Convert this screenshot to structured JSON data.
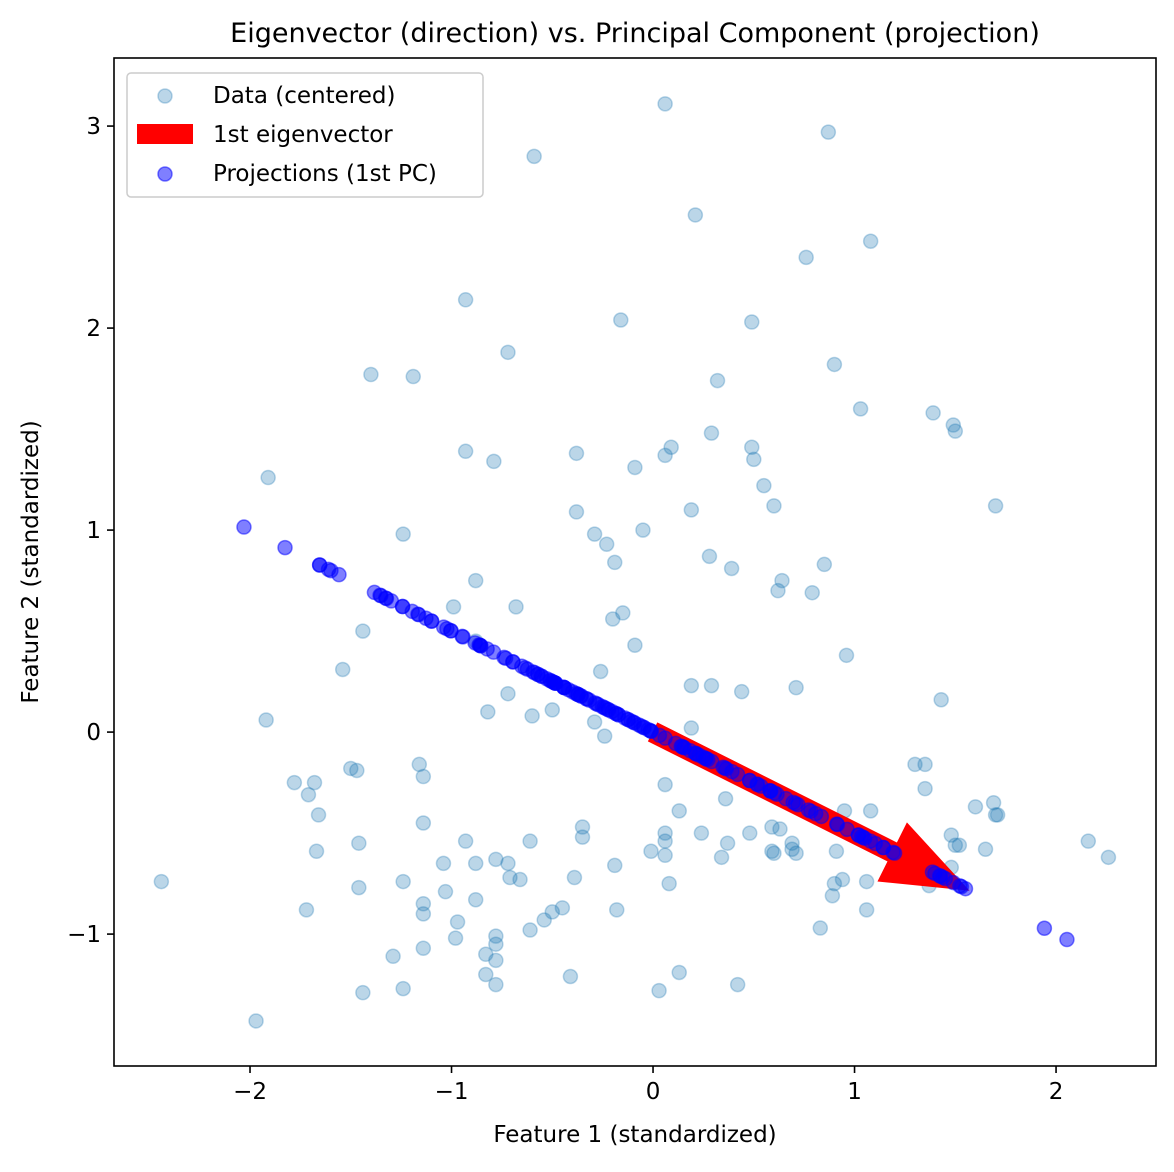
{
  "chart_data": {
    "type": "scatter",
    "title": "Eigenvector (direction) vs. Principal Component (projection)",
    "xlabel": "Feature 1 (standardized)",
    "ylabel": "Feature 2 (standardized)",
    "xlim": [
      -2.675,
      2.496
    ],
    "ylim": [
      -1.653,
      3.337
    ],
    "xticks": [
      -2,
      -1,
      0,
      1,
      2
    ],
    "xtick_labels": [
      "−2",
      "−1",
      "0",
      "1",
      "2"
    ],
    "yticks": [
      -1,
      0,
      1,
      2,
      3
    ],
    "ytick_labels": [
      "−1",
      "0",
      "1",
      "2",
      "3"
    ],
    "grid": false,
    "legend_position": "top-left",
    "legend": [
      "Data (centered)",
      "1st eigenvector",
      "Projections (1st PC)"
    ],
    "colors": {
      "data": "#1f77b4",
      "eigenvector": "#ff0000",
      "projection": "#0000ff"
    },
    "eigenvector": [
      0.894,
      -0.447
    ],
    "arrow_length": 1.75,
    "points": [
      [
        -2.44,
        -0.74
      ],
      [
        -1.97,
        -1.43
      ],
      [
        -1.91,
        1.26
      ],
      [
        -1.92,
        0.06
      ],
      [
        -1.78,
        -0.25
      ],
      [
        -1.71,
        -0.31
      ],
      [
        -1.68,
        -0.25
      ],
      [
        -1.66,
        -0.41
      ],
      [
        -1.67,
        -0.59
      ],
      [
        -1.72,
        -0.88
      ],
      [
        -1.54,
        0.31
      ],
      [
        -1.5,
        -0.18
      ],
      [
        -1.47,
        -0.19
      ],
      [
        -1.46,
        -0.55
      ],
      [
        -1.46,
        -0.77
      ],
      [
        -1.44,
        0.5
      ],
      [
        -1.44,
        -1.29
      ],
      [
        -1.4,
        1.77
      ],
      [
        -1.29,
        -1.11
      ],
      [
        -1.24,
        -0.74
      ],
      [
        -1.24,
        -1.27
      ],
      [
        -1.24,
        0.98
      ],
      [
        -1.19,
        1.76
      ],
      [
        -1.16,
        -0.16
      ],
      [
        -1.14,
        -0.22
      ],
      [
        -1.14,
        -0.45
      ],
      [
        -1.14,
        -0.85
      ],
      [
        -1.14,
        -0.9
      ],
      [
        -1.14,
        -1.07
      ],
      [
        -1.04,
        -0.65
      ],
      [
        -1.03,
        -0.79
      ],
      [
        -0.99,
        0.62
      ],
      [
        -0.98,
        -1.02
      ],
      [
        -0.97,
        -0.94
      ],
      [
        -0.93,
        2.14
      ],
      [
        -0.93,
        1.39
      ],
      [
        -0.93,
        -0.54
      ],
      [
        -0.88,
        0.75
      ],
      [
        -0.88,
        0.45
      ],
      [
        -0.88,
        -0.65
      ],
      [
        -0.88,
        -0.83
      ],
      [
        -0.83,
        -1.1
      ],
      [
        -0.83,
        -1.2
      ],
      [
        -0.82,
        0.1
      ],
      [
        -0.79,
        1.34
      ],
      [
        -0.78,
        -0.63
      ],
      [
        -0.78,
        -1.01
      ],
      [
        -0.78,
        -1.05
      ],
      [
        -0.78,
        -1.13
      ],
      [
        -0.78,
        -1.25
      ],
      [
        -0.72,
        1.88
      ],
      [
        -0.72,
        0.19
      ],
      [
        -0.72,
        -0.65
      ],
      [
        -0.71,
        -0.72
      ],
      [
        -0.68,
        0.62
      ],
      [
        -0.66,
        -0.73
      ],
      [
        -0.61,
        -0.54
      ],
      [
        -0.61,
        -0.98
      ],
      [
        -0.6,
        0.08
      ],
      [
        -0.59,
        2.85
      ],
      [
        -0.54,
        -0.93
      ],
      [
        -0.5,
        0.11
      ],
      [
        -0.5,
        -0.89
      ],
      [
        -0.45,
        -0.87
      ],
      [
        -0.41,
        -1.21
      ],
      [
        -0.39,
        -0.72
      ],
      [
        -0.38,
        1.38
      ],
      [
        -0.38,
        1.09
      ],
      [
        -0.35,
        -0.47
      ],
      [
        -0.35,
        -0.52
      ],
      [
        -0.29,
        0.98
      ],
      [
        -0.29,
        0.05
      ],
      [
        -0.26,
        0.3
      ],
      [
        -0.24,
        -0.02
      ],
      [
        -0.23,
        0.93
      ],
      [
        -0.2,
        0.56
      ],
      [
        -0.19,
        0.84
      ],
      [
        -0.19,
        -0.66
      ],
      [
        -0.18,
        -0.88
      ],
      [
        -0.16,
        2.04
      ],
      [
        -0.15,
        0.59
      ],
      [
        -0.09,
        1.31
      ],
      [
        -0.09,
        0.43
      ],
      [
        -0.05,
        1.0
      ],
      [
        -0.01,
        -0.59
      ],
      [
        0.03,
        -1.28
      ],
      [
        0.06,
        3.11
      ],
      [
        0.06,
        1.37
      ],
      [
        0.06,
        -0.26
      ],
      [
        0.06,
        -0.5
      ],
      [
        0.06,
        -0.54
      ],
      [
        0.06,
        -0.61
      ],
      [
        0.09,
        1.41
      ],
      [
        0.08,
        -0.75
      ],
      [
        0.13,
        -0.39
      ],
      [
        0.13,
        -1.19
      ],
      [
        0.19,
        1.1
      ],
      [
        0.19,
        0.23
      ],
      [
        0.19,
        0.02
      ],
      [
        0.21,
        2.56
      ],
      [
        0.24,
        -0.5
      ],
      [
        0.28,
        0.87
      ],
      [
        0.29,
        1.48
      ],
      [
        0.29,
        0.23
      ],
      [
        0.32,
        1.74
      ],
      [
        0.34,
        -0.62
      ],
      [
        0.36,
        -0.33
      ],
      [
        0.37,
        -0.55
      ],
      [
        0.39,
        0.81
      ],
      [
        0.42,
        -1.25
      ],
      [
        0.44,
        0.2
      ],
      [
        0.48,
        -0.5
      ],
      [
        0.49,
        2.03
      ],
      [
        0.49,
        1.41
      ],
      [
        0.5,
        1.35
      ],
      [
        0.55,
        1.22
      ],
      [
        0.59,
        -0.47
      ],
      [
        0.59,
        -0.59
      ],
      [
        0.6,
        1.12
      ],
      [
        0.6,
        -0.6
      ],
      [
        0.62,
        0.7
      ],
      [
        0.63,
        -0.48
      ],
      [
        0.64,
        0.75
      ],
      [
        0.69,
        -0.55
      ],
      [
        0.69,
        -0.58
      ],
      [
        0.71,
        0.22
      ],
      [
        0.71,
        -0.6
      ],
      [
        0.76,
        2.35
      ],
      [
        0.79,
        0.69
      ],
      [
        0.83,
        -0.97
      ],
      [
        0.85,
        0.83
      ],
      [
        0.87,
        2.97
      ],
      [
        0.89,
        -0.81
      ],
      [
        0.9,
        1.82
      ],
      [
        0.9,
        -0.75
      ],
      [
        0.91,
        -0.59
      ],
      [
        0.94,
        -0.73
      ],
      [
        0.96,
        0.38
      ],
      [
        0.95,
        -0.39
      ],
      [
        1.03,
        1.6
      ],
      [
        1.06,
        -0.88
      ],
      [
        1.06,
        -0.74
      ],
      [
        1.08,
        2.43
      ],
      [
        1.08,
        -0.39
      ],
      [
        1.3,
        -0.16
      ],
      [
        1.35,
        -0.16
      ],
      [
        1.35,
        -0.28
      ],
      [
        1.39,
        1.58
      ],
      [
        1.43,
        0.16
      ],
      [
        1.48,
        -0.51
      ],
      [
        1.49,
        1.52
      ],
      [
        1.5,
        1.49
      ],
      [
        1.5,
        -0.56
      ],
      [
        1.52,
        -0.56
      ],
      [
        1.48,
        -0.67
      ],
      [
        1.6,
        -0.37
      ],
      [
        1.65,
        -0.58
      ],
      [
        1.7,
        1.12
      ],
      [
        1.69,
        -0.35
      ],
      [
        1.7,
        -0.41
      ],
      [
        1.71,
        -0.41
      ],
      [
        2.16,
        -0.54
      ],
      [
        2.26,
        -0.62
      ],
      [
        1.37,
        -0.76
      ]
    ]
  }
}
